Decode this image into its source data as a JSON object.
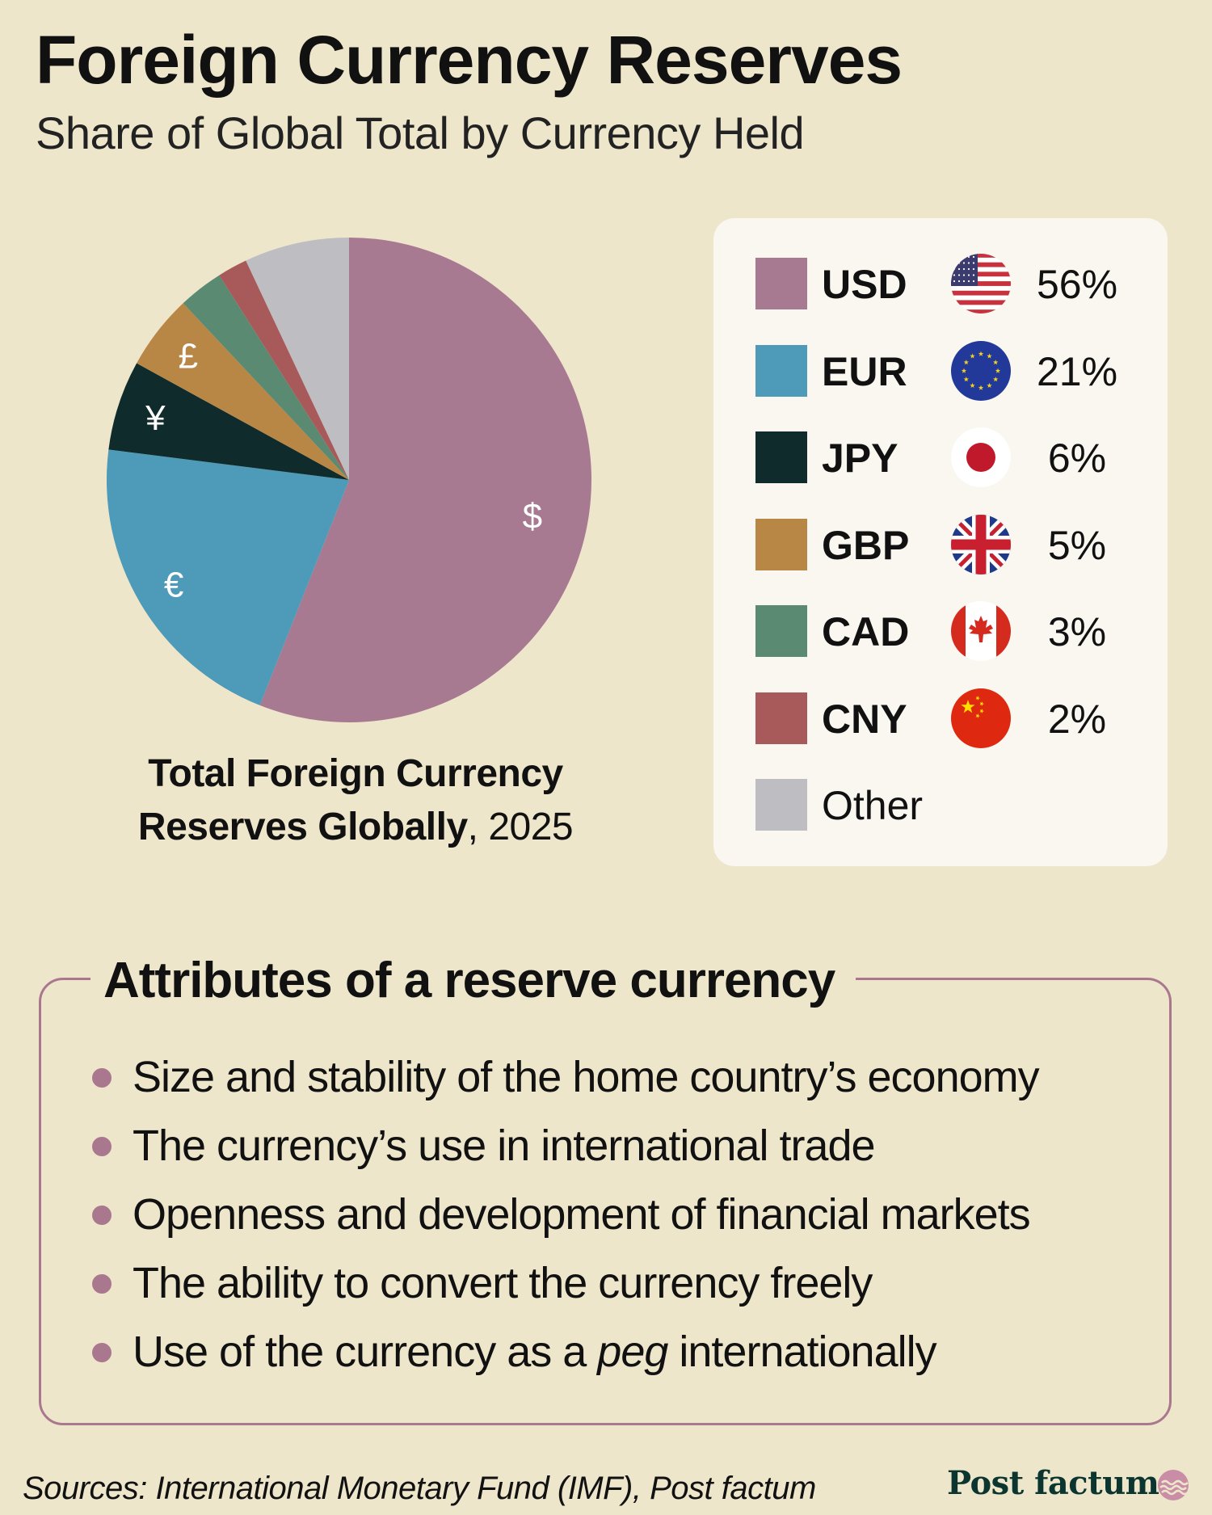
{
  "title": "Foreign Currency Reserves",
  "subtitle": "Share of Global Total by Currency Held",
  "chart_data": {
    "type": "pie",
    "title": "Total Foreign Currency Reserves Globally, 2025",
    "categories": [
      "USD",
      "EUR",
      "JPY",
      "GBP",
      "CAD",
      "CNY",
      "Other"
    ],
    "values": [
      56,
      21,
      6,
      5,
      3,
      2,
      7
    ],
    "value_labels": [
      "56%",
      "21%",
      "6%",
      "5%",
      "3%",
      "2%",
      ""
    ],
    "slice_symbols": [
      "$",
      "€",
      "¥",
      "£",
      "",
      "",
      ""
    ],
    "colors": [
      "#a87a92",
      "#4e9ab9",
      "#0f2b2b",
      "#b88746",
      "#5b8a72",
      "#a85a5b",
      "#bebdc1"
    ],
    "legend_position": "right"
  },
  "caption": {
    "bold": "Total Foreign Currency Reserves Globally",
    "rest": ", 2025"
  },
  "legend_icons": [
    "us-flag-icon",
    "eu-flag-icon",
    "japan-flag-icon",
    "uk-flag-icon",
    "canada-flag-icon",
    "china-flag-icon",
    ""
  ],
  "attributes": {
    "title": "Attributes of a reserve currency",
    "items": [
      "Size and stability of the home country’s economy",
      "The currency’s use in international trade",
      "Openness and development of financial markets",
      "The ability to convert the currency freely"
    ],
    "last_item": {
      "before": "Use of the currency as a ",
      "emphasis": "peg",
      "after": " internationally"
    }
  },
  "source": "Sources: International Monetary Fund (IMF), Post factum",
  "brand": "Post factum",
  "accent_color": "#a9788e",
  "background_color": "#ede6cb"
}
